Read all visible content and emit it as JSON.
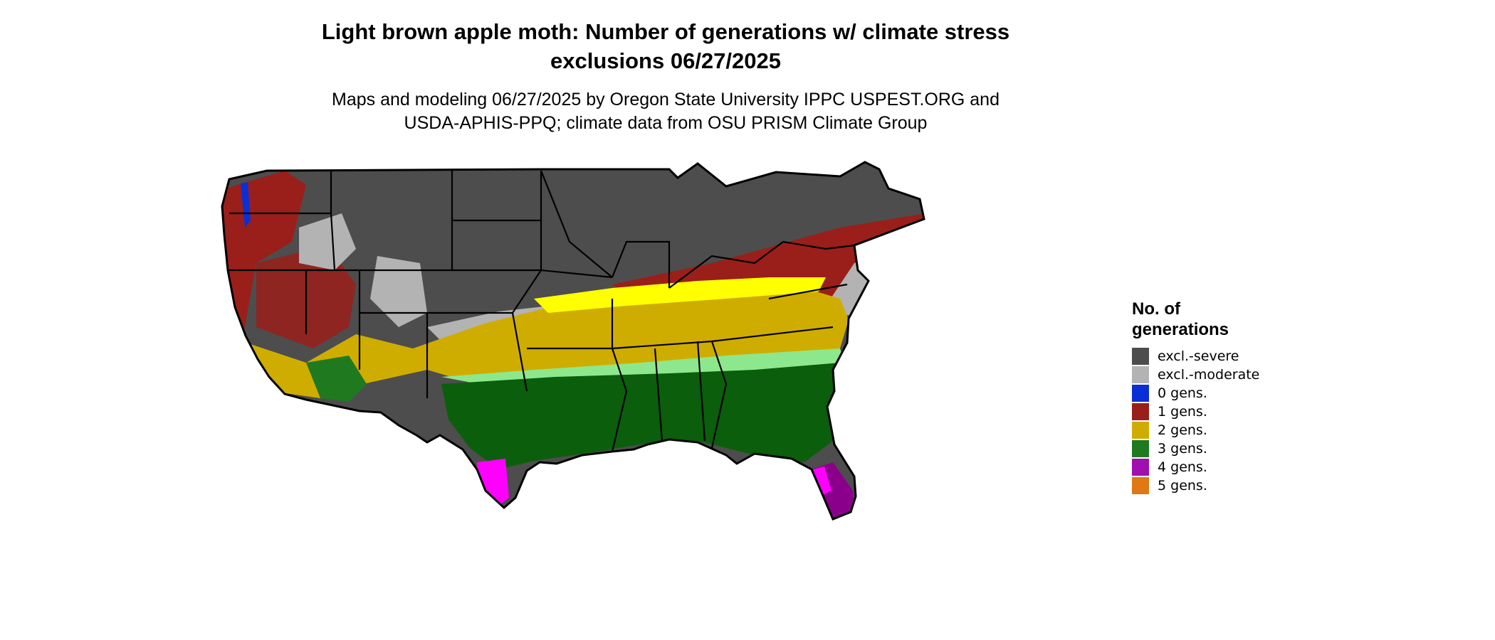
{
  "title_line1": "Light brown apple moth: Number of generations w/ climate stress",
  "title_line2": "exclusions 06/27/2025",
  "subtitle_line1": "Maps and modeling 06/27/2025 by Oregon State University IPPC USPEST.ORG and",
  "subtitle_line2": "USDA-APHIS-PPQ; climate data from OSU PRISM Climate Group",
  "legend": {
    "title_line1": "No. of",
    "title_line2": "generations",
    "items": [
      {
        "label": "excl.-severe",
        "color": "#4d4d4d"
      },
      {
        "label": "excl.-moderate",
        "color": "#b3b3b3"
      },
      {
        "label": "0 gens.",
        "color": "#0a2fd6"
      },
      {
        "label": "1 gens.",
        "color": "#9a1f1a"
      },
      {
        "label": "2 gens.",
        "color": "#cfad00"
      },
      {
        "label": "3 gens.",
        "color": "#1f7a1f"
      },
      {
        "label": "4 gens.",
        "color": "#a00fb0"
      },
      {
        "label": "5 gens.",
        "color": "#e07813"
      }
    ]
  },
  "map_colors": {
    "excl_severe": "#4d4d4d",
    "excl_moderate": "#b3b3b3",
    "gen0": "#0a2fd6",
    "gen1": "#9a1f1a",
    "gen2": "#cfad00",
    "gen2_light": "#ffff00",
    "gen3": "#0b5e0b",
    "gen3_light": "#8de88d",
    "gen4": "#ff00ff",
    "gen4_dark": "#8b008b",
    "border": "#000000",
    "water": "#ffffff"
  }
}
